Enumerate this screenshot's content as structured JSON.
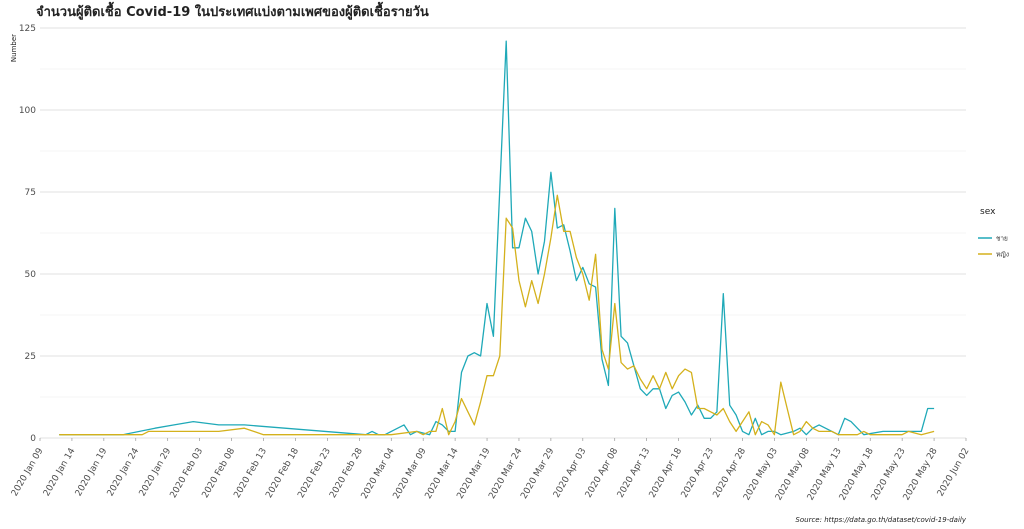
{
  "chart_data": {
    "type": "line",
    "title": "จำนวนผู้ติดเชื้อ Covid-19 ในประเทศแบ่งตามเพศของผู้ติดเชื้อรายวัน",
    "ylabel": "Number",
    "xlabel": "",
    "ylim": [
      0,
      125
    ],
    "yticks": [
      0,
      25,
      50,
      75,
      100,
      125
    ],
    "xlim": [
      "2020-01-09",
      "2020-06-02"
    ],
    "xticks": [
      "2020-01-09",
      "2020-01-14",
      "2020-01-19",
      "2020-01-24",
      "2020-01-29",
      "2020-02-03",
      "2020-02-08",
      "2020-02-13",
      "2020-02-18",
      "2020-02-23",
      "2020-02-28",
      "2020-03-04",
      "2020-03-09",
      "2020-03-14",
      "2020-03-19",
      "2020-03-24",
      "2020-03-29",
      "2020-04-03",
      "2020-04-08",
      "2020-04-13",
      "2020-04-18",
      "2020-04-23",
      "2020-04-28",
      "2020-05-03",
      "2020-05-08",
      "2020-05-13",
      "2020-05-18",
      "2020-05-23",
      "2020-05-28",
      "2020-06-02"
    ],
    "xtick_labels": [
      "2020 Jan 09",
      "2020 Jan 14",
      "2020 Jan 19",
      "2020 Jan 24",
      "2020 Jan 29",
      "2020 Feb 03",
      "2020 Feb 08",
      "2020 Feb 13",
      "2020 Feb 18",
      "2020 Feb 23",
      "2020 Feb 28",
      "2020 Mar 04",
      "2020 Mar 09",
      "2020 Mar 14",
      "2020 Mar 19",
      "2020 Mar 24",
      "2020 Mar 29",
      "2020 Apr 03",
      "2020 Apr 08",
      "2020 Apr 13",
      "2020 Apr 18",
      "2020 Apr 23",
      "2020 Apr 28",
      "2020 May 03",
      "2020 May 08",
      "2020 May 13",
      "2020 May 18",
      "2020 May 23",
      "2020 May 28",
      "2020 Jun 02"
    ],
    "grid": true,
    "legend": {
      "title": "sex",
      "position": "right"
    },
    "caption": "Source: https://data.go.th/dataset/covid-19-daily",
    "series": [
      {
        "name": "ชาย",
        "color": "#1fa9b8",
        "points": [
          [
            "2020-01-12",
            1
          ],
          [
            "2020-01-22",
            1
          ],
          [
            "2020-01-27",
            3
          ],
          [
            "2020-01-30",
            4
          ],
          [
            "2020-02-02",
            5
          ],
          [
            "2020-02-06",
            4
          ],
          [
            "2020-02-10",
            4
          ],
          [
            "2020-02-29",
            1
          ],
          [
            "2020-03-01",
            2
          ],
          [
            "2020-03-02",
            1
          ],
          [
            "2020-03-03",
            1
          ],
          [
            "2020-03-06",
            4
          ],
          [
            "2020-03-07",
            1
          ],
          [
            "2020-03-08",
            2
          ],
          [
            "2020-03-10",
            1
          ],
          [
            "2020-03-11",
            5
          ],
          [
            "2020-03-12",
            4
          ],
          [
            "2020-03-13",
            2
          ],
          [
            "2020-03-14",
            2
          ],
          [
            "2020-03-15",
            20
          ],
          [
            "2020-03-16",
            25
          ],
          [
            "2020-03-17",
            26
          ],
          [
            "2020-03-18",
            25
          ],
          [
            "2020-03-19",
            41
          ],
          [
            "2020-03-20",
            31
          ],
          [
            "2020-03-22",
            121
          ],
          [
            "2020-03-23",
            58
          ],
          [
            "2020-03-24",
            58
          ],
          [
            "2020-03-25",
            67
          ],
          [
            "2020-03-26",
            63
          ],
          [
            "2020-03-27",
            50
          ],
          [
            "2020-03-28",
            60
          ],
          [
            "2020-03-29",
            81
          ],
          [
            "2020-03-30",
            64
          ],
          [
            "2020-03-31",
            65
          ],
          [
            "2020-04-01",
            57
          ],
          [
            "2020-04-02",
            48
          ],
          [
            "2020-04-03",
            52
          ],
          [
            "2020-04-04",
            47
          ],
          [
            "2020-04-05",
            46
          ],
          [
            "2020-04-06",
            24
          ],
          [
            "2020-04-07",
            16
          ],
          [
            "2020-04-08",
            70
          ],
          [
            "2020-04-09",
            31
          ],
          [
            "2020-04-10",
            29
          ],
          [
            "2020-04-11",
            22
          ],
          [
            "2020-04-12",
            15
          ],
          [
            "2020-04-13",
            13
          ],
          [
            "2020-04-14",
            15
          ],
          [
            "2020-04-15",
            15
          ],
          [
            "2020-04-16",
            9
          ],
          [
            "2020-04-17",
            13
          ],
          [
            "2020-04-18",
            14
          ],
          [
            "2020-04-19",
            11
          ],
          [
            "2020-04-20",
            7
          ],
          [
            "2020-04-21",
            10
          ],
          [
            "2020-04-22",
            6
          ],
          [
            "2020-04-23",
            6
          ],
          [
            "2020-04-24",
            8
          ],
          [
            "2020-04-25",
            44
          ],
          [
            "2020-04-26",
            10
          ],
          [
            "2020-04-27",
            7
          ],
          [
            "2020-04-28",
            2
          ],
          [
            "2020-04-29",
            1
          ],
          [
            "2020-04-30",
            6
          ],
          [
            "2020-05-01",
            1
          ],
          [
            "2020-05-02",
            2
          ],
          [
            "2020-05-03",
            2
          ],
          [
            "2020-05-04",
            1
          ],
          [
            "2020-05-06",
            2
          ],
          [
            "2020-05-07",
            3
          ],
          [
            "2020-05-08",
            1
          ],
          [
            "2020-05-09",
            3
          ],
          [
            "2020-05-10",
            4
          ],
          [
            "2020-05-11",
            3
          ],
          [
            "2020-05-13",
            1
          ],
          [
            "2020-05-14",
            6
          ],
          [
            "2020-05-15",
            5
          ],
          [
            "2020-05-16",
            3
          ],
          [
            "2020-05-17",
            1
          ],
          [
            "2020-05-20",
            2
          ],
          [
            "2020-05-23",
            2
          ],
          [
            "2020-05-25",
            2
          ],
          [
            "2020-05-26",
            2
          ],
          [
            "2020-05-27",
            9
          ],
          [
            "2020-05-28",
            9
          ]
        ]
      },
      {
        "name": "หญิง",
        "color": "#d4b11c",
        "points": [
          [
            "2020-01-12",
            1
          ],
          [
            "2020-01-22",
            1
          ],
          [
            "2020-01-25",
            1
          ],
          [
            "2020-01-26",
            2
          ],
          [
            "2020-02-06",
            2
          ],
          [
            "2020-02-10",
            3
          ],
          [
            "2020-02-13",
            1
          ],
          [
            "2020-02-28",
            1
          ],
          [
            "2020-03-04",
            1
          ],
          [
            "2020-03-08",
            2
          ],
          [
            "2020-03-09",
            1
          ],
          [
            "2020-03-10",
            2
          ],
          [
            "2020-03-11",
            2
          ],
          [
            "2020-03-12",
            9
          ],
          [
            "2020-03-13",
            1
          ],
          [
            "2020-03-14",
            5
          ],
          [
            "2020-03-15",
            12
          ],
          [
            "2020-03-16",
            8
          ],
          [
            "2020-03-17",
            4
          ],
          [
            "2020-03-18",
            11
          ],
          [
            "2020-03-19",
            19
          ],
          [
            "2020-03-20",
            19
          ],
          [
            "2020-03-21",
            25
          ],
          [
            "2020-03-22",
            67
          ],
          [
            "2020-03-23",
            64
          ],
          [
            "2020-03-24",
            48
          ],
          [
            "2020-03-25",
            40
          ],
          [
            "2020-03-26",
            48
          ],
          [
            "2020-03-27",
            41
          ],
          [
            "2020-03-28",
            50
          ],
          [
            "2020-03-29",
            61
          ],
          [
            "2020-03-30",
            74
          ],
          [
            "2020-03-31",
            63
          ],
          [
            "2020-04-01",
            63
          ],
          [
            "2020-04-02",
            55
          ],
          [
            "2020-04-03",
            50
          ],
          [
            "2020-04-04",
            42
          ],
          [
            "2020-04-05",
            56
          ],
          [
            "2020-04-06",
            27
          ],
          [
            "2020-04-07",
            21
          ],
          [
            "2020-04-08",
            41
          ],
          [
            "2020-04-09",
            23
          ],
          [
            "2020-04-10",
            21
          ],
          [
            "2020-04-11",
            22
          ],
          [
            "2020-04-12",
            18
          ],
          [
            "2020-04-13",
            15
          ],
          [
            "2020-04-14",
            19
          ],
          [
            "2020-04-15",
            15
          ],
          [
            "2020-04-16",
            20
          ],
          [
            "2020-04-17",
            15
          ],
          [
            "2020-04-18",
            19
          ],
          [
            "2020-04-19",
            21
          ],
          [
            "2020-04-20",
            20
          ],
          [
            "2020-04-21",
            9
          ],
          [
            "2020-04-22",
            9
          ],
          [
            "2020-04-23",
            8
          ],
          [
            "2020-04-24",
            7
          ],
          [
            "2020-04-25",
            9
          ],
          [
            "2020-04-26",
            5
          ],
          [
            "2020-04-27",
            2
          ],
          [
            "2020-04-28",
            5
          ],
          [
            "2020-04-29",
            8
          ],
          [
            "2020-04-30",
            1
          ],
          [
            "2020-05-01",
            5
          ],
          [
            "2020-05-02",
            4
          ],
          [
            "2020-05-03",
            1
          ],
          [
            "2020-05-04",
            17
          ],
          [
            "2020-05-05",
            9
          ],
          [
            "2020-05-06",
            1
          ],
          [
            "2020-05-07",
            2
          ],
          [
            "2020-05-08",
            5
          ],
          [
            "2020-05-09",
            3
          ],
          [
            "2020-05-10",
            2
          ],
          [
            "2020-05-11",
            2
          ],
          [
            "2020-05-12",
            2
          ],
          [
            "2020-05-13",
            1
          ],
          [
            "2020-05-14",
            1
          ],
          [
            "2020-05-16",
            1
          ],
          [
            "2020-05-17",
            2
          ],
          [
            "2020-05-18",
            1
          ],
          [
            "2020-05-20",
            1
          ],
          [
            "2020-05-23",
            1
          ],
          [
            "2020-05-24",
            2
          ],
          [
            "2020-05-26",
            1
          ],
          [
            "2020-05-28",
            2
          ]
        ]
      }
    ]
  }
}
